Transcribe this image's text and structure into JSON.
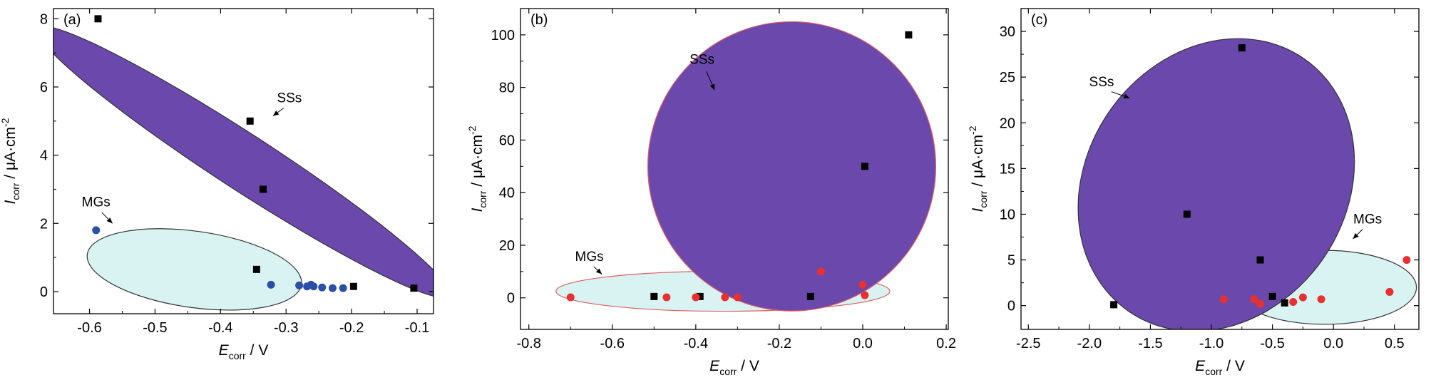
{
  "chart_data": [
    {
      "type": "scatter",
      "panel_label": "(a)",
      "xlabel_main": "E",
      "xlabel_sub": "corr",
      "xlabel_unit": " / V",
      "ylabel_main": "I",
      "ylabel_sub": "corr",
      "ylabel_unit": " / μA·cm",
      "ylabel_sup": "-2",
      "xlim": [
        -0.655,
        -0.075
      ],
      "ylim": [
        -0.65,
        8.3
      ],
      "xticks": [
        -0.6,
        -0.5,
        -0.4,
        -0.3,
        -0.2,
        -0.1
      ],
      "xtick_labels": [
        "-0.6",
        "-0.5",
        "-0.4",
        "-0.3",
        "-0.2",
        "-0.1"
      ],
      "yticks": [
        0,
        2,
        4,
        6,
        8
      ],
      "ytick_labels": [
        "0",
        "2",
        "4",
        "6",
        "8"
      ],
      "series": [
        {
          "name": "SSs",
          "marker": "square",
          "color": "#000000",
          "points": [
            [
              -0.587,
              8.0
            ],
            [
              -0.355,
              5.0
            ],
            [
              -0.335,
              3.0
            ],
            [
              -0.345,
              0.65
            ],
            [
              -0.197,
              0.15
            ],
            [
              -0.105,
              0.1
            ]
          ]
        },
        {
          "name": "MGs",
          "marker": "circle",
          "color": "#2b4fa8",
          "points": [
            [
              -0.59,
              1.8
            ],
            [
              -0.323,
              0.2
            ],
            [
              -0.28,
              0.18
            ],
            [
              -0.268,
              0.15
            ],
            [
              -0.262,
              0.2
            ],
            [
              -0.258,
              0.15
            ],
            [
              -0.245,
              0.12
            ],
            [
              -0.229,
              0.1
            ],
            [
              -0.213,
              0.1
            ]
          ]
        }
      ],
      "regions": [
        {
          "label": "MGs",
          "fill": "#d9f2f2",
          "stroke": "#333333",
          "cx": -0.44,
          "cy": 0.65,
          "rx": 0.165,
          "ry": 1.12,
          "angle": 8,
          "label_pos": [
            -0.59,
            2.5
          ],
          "arrow_to": [
            -0.565,
            2.0
          ]
        },
        {
          "label": "SSs",
          "fill": "#6b48ab",
          "stroke": "#333333",
          "cx": -0.365,
          "cy": 3.8,
          "rx": 0.375,
          "ry": 0.82,
          "angle": 33,
          "label_pos": [
            -0.295,
            5.55
          ],
          "arrow_to": [
            -0.32,
            5.15
          ]
        }
      ]
    },
    {
      "type": "scatter",
      "panel_label": "(b)",
      "xlabel_main": "E",
      "xlabel_sub": "corr",
      "xlabel_unit": " / V",
      "ylabel_main": "I",
      "ylabel_sub": "corr",
      "ylabel_unit": " / μA·cm",
      "ylabel_sup": "-2",
      "xlim": [
        -0.82,
        0.205
      ],
      "ylim": [
        -12,
        110
      ],
      "xticks": [
        -0.8,
        -0.6,
        -0.4,
        -0.2,
        0.0,
        0.2
      ],
      "xtick_labels": [
        "-0.8",
        "-0.6",
        "-0.4",
        "-0.2",
        "0.0",
        "0.2"
      ],
      "yticks": [
        0,
        20,
        40,
        60,
        80,
        100
      ],
      "ytick_labels": [
        "0",
        "20",
        "40",
        "60",
        "80",
        "100"
      ],
      "series": [
        {
          "name": "SSs",
          "marker": "square",
          "color": "#000000",
          "points": [
            [
              0.11,
              100
            ],
            [
              0.005,
              50
            ],
            [
              -0.5,
              0.5
            ],
            [
              -0.39,
              0.5
            ],
            [
              -0.125,
              0.5
            ]
          ]
        },
        {
          "name": "MGs",
          "marker": "circle",
          "color": "#e83030",
          "points": [
            [
              -0.7,
              0.2
            ],
            [
              -0.47,
              0.2
            ],
            [
              -0.4,
              0.2
            ],
            [
              -0.33,
              0.2
            ],
            [
              -0.3,
              0.2
            ],
            [
              -0.1,
              10
            ],
            [
              0.0,
              5
            ],
            [
              0.005,
              1
            ]
          ]
        }
      ],
      "regions": [
        {
          "label": "MGs",
          "fill": "#d9f2f2",
          "stroke": "#e06060",
          "cx": -0.335,
          "cy": 2.5,
          "rx": 0.4,
          "ry": 7.6,
          "angle": 0,
          "label_pos": [
            -0.655,
            14
          ],
          "arrow_to": [
            -0.625,
            9
          ]
        },
        {
          "label": "SSs",
          "fill": "#6b48ab",
          "stroke": "#e06060",
          "cx": -0.17,
          "cy": 50,
          "rx": 0.345,
          "ry": 55,
          "angle": 0,
          "label_pos": [
            -0.385,
            89
          ],
          "arrow_to": [
            -0.355,
            79
          ]
        }
      ]
    },
    {
      "type": "scatter",
      "panel_label": "(c)",
      "xlabel_main": "E",
      "xlabel_sub": "corr",
      "xlabel_unit": " / V",
      "ylabel_main": "I",
      "ylabel_sub": "corr",
      "ylabel_unit": " / μA·cm",
      "ylabel_sup": "-2",
      "xlim": [
        -2.56,
        0.7
      ],
      "ylim": [
        -2.6,
        32.5
      ],
      "xticks": [
        -2.5,
        -2.0,
        -1.5,
        -1.0,
        -0.5,
        0.0,
        0.5
      ],
      "xtick_labels": [
        "-2.5",
        "-2.0",
        "-1.5",
        "-1.0",
        "-0.5",
        "0.0",
        "0.5"
      ],
      "yticks": [
        0,
        5,
        10,
        15,
        20,
        25,
        30
      ],
      "ytick_labels": [
        "0",
        "5",
        "10",
        "15",
        "20",
        "25",
        "30"
      ],
      "series": [
        {
          "name": "SSs",
          "marker": "square",
          "color": "#000000",
          "points": [
            [
              -0.75,
              28.2
            ],
            [
              -1.2,
              10
            ],
            [
              -0.6,
              5
            ],
            [
              -1.8,
              0.1
            ],
            [
              -0.5,
              1.0
            ],
            [
              -0.4,
              0.3
            ]
          ]
        },
        {
          "name": "MGs",
          "marker": "circle",
          "color": "#e83030",
          "points": [
            [
              -0.9,
              0.7
            ],
            [
              -0.65,
              0.7
            ],
            [
              -0.6,
              0.2
            ],
            [
              -0.33,
              0.4
            ],
            [
              -0.25,
              0.9
            ],
            [
              -0.1,
              0.7
            ],
            [
              0.46,
              1.5
            ],
            [
              0.6,
              5.0
            ]
          ]
        }
      ],
      "regions": [
        {
          "label": "MGs",
          "fill": "#d9f2f2",
          "stroke": "#333333",
          "cx": -0.07,
          "cy": 2.0,
          "rx": 0.75,
          "ry": 4.05,
          "angle": 0,
          "label_pos": [
            0.28,
            9.0
          ],
          "arrow_to": [
            0.16,
            7.3
          ]
        },
        {
          "label": "SSs",
          "fill": "#6b48ab",
          "stroke": "#333333",
          "cx": -0.96,
          "cy": 13.2,
          "rx": 1.26,
          "ry": 14.2,
          "angle": -55,
          "label_pos": [
            -1.9,
            24.0
          ],
          "arrow_to": [
            -1.67,
            22.7
          ]
        }
      ]
    }
  ]
}
